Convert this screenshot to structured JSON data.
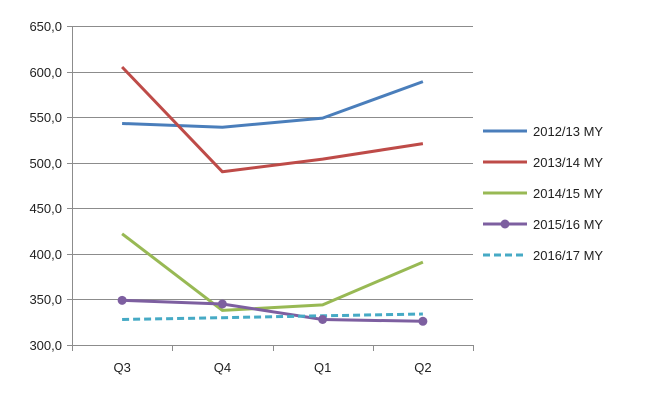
{
  "chart_data": {
    "type": "line",
    "categories": [
      "Q3",
      "Q4",
      "Q1",
      "Q2"
    ],
    "ylim": [
      300,
      650
    ],
    "y_ticks": [
      "300,0",
      "350,0",
      "400,0",
      "450,0",
      "500,0",
      "550,0",
      "600,0",
      "650,0"
    ],
    "grid": "horizontal",
    "legend_position": "right",
    "series": [
      {
        "name": "2012/13 MY",
        "values": [
          543,
          539,
          549,
          589
        ],
        "color": "#4a7ebb",
        "dash": false,
        "markers": false
      },
      {
        "name": "2013/14 MY",
        "values": [
          605,
          490,
          504,
          521
        ],
        "color": "#be4b48",
        "dash": false,
        "markers": false
      },
      {
        "name": "2014/15 MY",
        "values": [
          422,
          338,
          344,
          391
        ],
        "color": "#98b954",
        "dash": false,
        "markers": false
      },
      {
        "name": "2015/16 MY",
        "values": [
          349,
          345,
          328,
          326
        ],
        "color": "#7d5fa0",
        "dash": false,
        "markers": true
      },
      {
        "name": "2016/17 MY",
        "values": [
          328,
          330,
          332,
          334
        ],
        "color": "#46aac5",
        "dash": true,
        "markers": false
      }
    ]
  }
}
